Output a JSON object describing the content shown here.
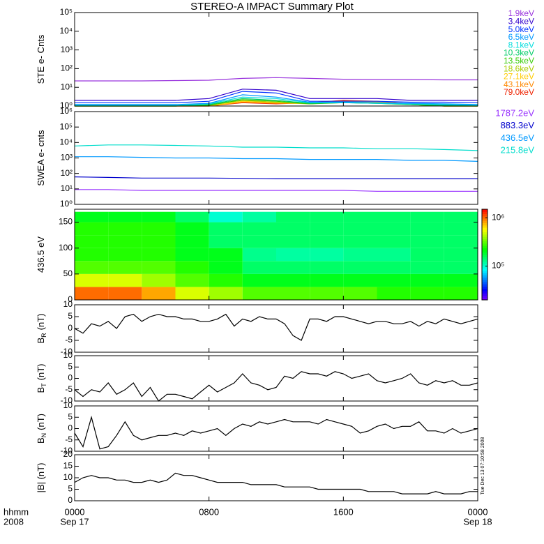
{
  "title": "STEREO-A IMPACT Summary Plot",
  "timestamp": "Tue Dec 13 07:10:58 2008",
  "chart_data": [
    {
      "type": "line",
      "ylabel": "STE e- Cnts",
      "ylog": true,
      "ylim": [
        1,
        100000
      ],
      "yticks": [
        {
          "value": 1,
          "label": "10⁰"
        },
        {
          "value": 10,
          "label": "10¹"
        },
        {
          "value": 100,
          "label": "10²"
        },
        {
          "value": 1000,
          "label": "10³"
        },
        {
          "value": 10000,
          "label": "10⁴"
        },
        {
          "value": 100000,
          "label": "10⁵"
        }
      ],
      "xlim": [
        0,
        24
      ],
      "xticks": [
        0,
        8,
        16,
        24
      ],
      "x": [
        0,
        2,
        4,
        6,
        8,
        10,
        12,
        14,
        16,
        18,
        20,
        22,
        24
      ],
      "series": [
        {
          "name": "1.9keV",
          "color": "#9933dd",
          "values": [
            22,
            22,
            22,
            23,
            24,
            30,
            33,
            30,
            27,
            26,
            26,
            25,
            25
          ]
        },
        {
          "name": "3.4keV",
          "color": "#3300cc",
          "values": [
            2,
            2,
            2,
            2,
            2.5,
            8,
            7,
            2.5,
            2.5,
            2.5,
            2,
            2,
            2
          ]
        },
        {
          "name": "5.0keV",
          "color": "#0033ff",
          "values": [
            1.5,
            1.5,
            1.5,
            1.5,
            1.8,
            6,
            5,
            1.8,
            1.8,
            1.8,
            1.6,
            1.6,
            1.5
          ]
        },
        {
          "name": "6.5keV",
          "color": "#0099ff",
          "values": [
            1.2,
            1.2,
            1.2,
            1.2,
            1.4,
            4,
            3,
            1.6,
            1.6,
            1.5,
            1.4,
            1.3,
            1.2
          ]
        },
        {
          "name": "8.1keV",
          "color": "#00dddd",
          "values": [
            1.1,
            1.1,
            1.1,
            1.1,
            1.3,
            3,
            2.5,
            1.5,
            1.5,
            1.4,
            1.3,
            1.2,
            1.1
          ]
        },
        {
          "name": "10.3keV",
          "color": "#00cc66",
          "values": [
            1,
            1,
            1,
            1,
            1.2,
            2.5,
            2,
            1.4,
            1.5,
            1.4,
            1.2,
            1.1,
            1
          ]
        },
        {
          "name": "13.5keV",
          "color": "#33cc00",
          "values": [
            1,
            1,
            1,
            1,
            1.1,
            2.2,
            1.8,
            1.3,
            1.5,
            1.4,
            1.2,
            1,
            1
          ]
        },
        {
          "name": "18.6keV",
          "color": "#aacc00",
          "values": [
            1,
            1,
            1,
            1,
            1.1,
            2,
            1.6,
            1.3,
            1.6,
            1.5,
            1.2,
            1,
            1
          ]
        },
        {
          "name": "27.1keV",
          "color": "#ffcc00",
          "values": [
            1,
            1,
            1,
            1,
            1,
            1.8,
            1.5,
            1.3,
            1.7,
            1.6,
            1.2,
            1,
            1
          ]
        },
        {
          "name": "43.1keV",
          "color": "#ff8800",
          "values": [
            1,
            1,
            1,
            1,
            1,
            1.6,
            1.4,
            1.4,
            1.8,
            1.7,
            1.3,
            1,
            1
          ]
        },
        {
          "name": "79.0keV",
          "color": "#ee2200",
          "values": [
            1,
            1,
            1,
            1,
            1,
            1.5,
            1.3,
            1.5,
            2,
            1.8,
            1.3,
            1,
            1
          ]
        }
      ]
    },
    {
      "type": "line",
      "ylabel": "SWEA e- cnts",
      "ylog": true,
      "ylim": [
        1,
        1000000
      ],
      "yticks": [
        {
          "value": 1,
          "label": "10⁰"
        },
        {
          "value": 10,
          "label": "10¹"
        },
        {
          "value": 100,
          "label": "10²"
        },
        {
          "value": 1000,
          "label": "10³"
        },
        {
          "value": 10000,
          "label": "10⁴"
        },
        {
          "value": 100000,
          "label": "10⁵"
        },
        {
          "value": 1000000,
          "label": "10⁶"
        }
      ],
      "xlim": [
        0,
        24
      ],
      "xticks": [
        0,
        8,
        16,
        24
      ],
      "x": [
        0,
        2,
        4,
        6,
        8,
        10,
        12,
        14,
        16,
        18,
        20,
        22,
        24
      ],
      "series": [
        {
          "name": "1787.2eV",
          "color": "#9933ff",
          "values": [
            9,
            9,
            8,
            8,
            8,
            8,
            8,
            8,
            8,
            7,
            7,
            7,
            7
          ]
        },
        {
          "name": "883.3eV",
          "color": "#0000cc",
          "values": [
            60,
            55,
            50,
            50,
            50,
            48,
            45,
            45,
            45,
            45,
            45,
            45,
            45
          ]
        },
        {
          "name": "436.5eV",
          "color": "#0099ff",
          "values": [
            1200,
            1200,
            1100,
            1000,
            1000,
            900,
            900,
            800,
            800,
            800,
            700,
            700,
            600
          ]
        },
        {
          "name": "215.8eV",
          "color": "#00ddcc",
          "values": [
            6000,
            7000,
            7000,
            6500,
            6000,
            5000,
            5000,
            4500,
            4500,
            4000,
            4000,
            3500,
            3000
          ]
        }
      ]
    },
    {
      "type": "heatmap",
      "ylabel": "436.5 eV",
      "ylim": [
        0,
        175
      ],
      "yticks": [
        0,
        50,
        100,
        150
      ],
      "xlim": [
        0,
        24
      ],
      "xticks": [
        0,
        8,
        16,
        24
      ],
      "x_edges": [
        0,
        2,
        4,
        6,
        8,
        10,
        12,
        14,
        16,
        18,
        20,
        22,
        24
      ],
      "y_edges": [
        0,
        25,
        50,
        75,
        100,
        125,
        150,
        170
      ],
      "zlog": true,
      "zlim": [
        20000,
        1500000
      ],
      "colormap": "rainbow",
      "zticks": [
        {
          "value": 100000,
          "label": "10⁵"
        },
        {
          "value": 1000000,
          "label": "10⁶"
        }
      ],
      "values": [
        [
          1000000,
          1000000,
          800000,
          500000,
          400000,
          300000,
          300000,
          300000,
          300000,
          250000,
          250000,
          250000
        ],
        [
          500000,
          500000,
          400000,
          300000,
          250000,
          200000,
          200000,
          200000,
          200000,
          200000,
          200000,
          200000
        ],
        [
          300000,
          300000,
          300000,
          250000,
          200000,
          150000,
          150000,
          150000,
          150000,
          150000,
          150000,
          150000
        ],
        [
          250000,
          250000,
          250000,
          200000,
          200000,
          130000,
          120000,
          120000,
          130000,
          130000,
          150000,
          150000
        ],
        [
          250000,
          250000,
          250000,
          200000,
          150000,
          150000,
          150000,
          150000,
          150000,
          150000,
          150000,
          150000
        ],
        [
          250000,
          250000,
          250000,
          200000,
          150000,
          150000,
          150000,
          150000,
          150000,
          150000,
          150000,
          150000
        ],
        [
          200000,
          200000,
          200000,
          150000,
          100000,
          120000,
          150000,
          150000,
          150000,
          150000,
          150000,
          150000
        ]
      ]
    },
    {
      "type": "line",
      "ylabel": "B",
      "ylabel_sub": "R",
      "ylabel_unit": "(nT)",
      "ylim": [
        -10,
        10
      ],
      "yticks": [
        -10,
        -5,
        0,
        5,
        10
      ],
      "xlim": [
        0,
        24
      ],
      "xticks": [
        0,
        8,
        16,
        24
      ],
      "x": [
        0,
        0.5,
        1,
        1.5,
        2,
        2.5,
        3,
        3.5,
        4,
        4.5,
        5,
        5.5,
        6,
        6.5,
        7,
        7.5,
        8,
        8.5,
        9,
        9.5,
        10,
        10.5,
        11,
        11.5,
        12,
        12.5,
        13,
        13.5,
        14,
        14.5,
        15,
        15.5,
        16,
        16.5,
        17,
        17.5,
        18,
        18.5,
        19,
        19.5,
        20,
        20.5,
        21,
        21.5,
        22,
        22.5,
        23,
        23.5,
        24
      ],
      "series": [
        {
          "color": "#000000",
          "values": [
            0,
            -2,
            2,
            1,
            3,
            0,
            5,
            6,
            3,
            5,
            6,
            5,
            5,
            4,
            4,
            3,
            3,
            4,
            6,
            1,
            4,
            3,
            5,
            4,
            4,
            2,
            -3,
            -5,
            4,
            4,
            3,
            5,
            5,
            4,
            3,
            2,
            3,
            3,
            2,
            2,
            3,
            1,
            3,
            2,
            4,
            3,
            2,
            3,
            4
          ]
        }
      ]
    },
    {
      "type": "line",
      "ylabel": "B",
      "ylabel_sub": "T",
      "ylabel_unit": "(nT)",
      "ylim": [
        -10,
        10
      ],
      "yticks": [
        -10,
        -5,
        0,
        5,
        10
      ],
      "xlim": [
        0,
        24
      ],
      "xticks": [
        0,
        8,
        16,
        24
      ],
      "x": [
        0,
        0.5,
        1,
        1.5,
        2,
        2.5,
        3,
        3.5,
        4,
        4.5,
        5,
        5.5,
        6,
        6.5,
        7,
        7.5,
        8,
        8.5,
        9,
        9.5,
        10,
        10.5,
        11,
        11.5,
        12,
        12.5,
        13,
        13.5,
        14,
        14.5,
        15,
        15.5,
        16,
        16.5,
        17,
        17.5,
        18,
        18.5,
        19,
        19.5,
        20,
        20.5,
        21,
        21.5,
        22,
        22.5,
        23,
        23.5,
        24
      ],
      "series": [
        {
          "color": "#000000",
          "values": [
            -5,
            -8,
            -5,
            -6,
            -2,
            -7,
            -5,
            -2,
            -8,
            -4,
            -10,
            -7,
            -7,
            -8,
            -9,
            -6,
            -3,
            -6,
            -4,
            -2,
            2,
            -2,
            -3,
            -5,
            -4,
            1,
            0,
            3,
            2,
            2,
            1,
            3,
            2,
            0,
            1,
            2,
            -1,
            -2,
            -1,
            0,
            2,
            -2,
            -3,
            -1,
            -2,
            -1,
            -3,
            -3,
            -2
          ]
        }
      ]
    },
    {
      "type": "line",
      "ylabel": "B",
      "ylabel_sub": "N",
      "ylabel_unit": "(nT)",
      "ylim": [
        -10,
        10
      ],
      "yticks": [
        -10,
        -5,
        0,
        5,
        10
      ],
      "xlim": [
        0,
        24
      ],
      "xticks": [
        0,
        8,
        16,
        24
      ],
      "x": [
        0,
        0.5,
        1,
        1.5,
        2,
        2.5,
        3,
        3.5,
        4,
        4.5,
        5,
        5.5,
        6,
        6.5,
        7,
        7.5,
        8,
        8.5,
        9,
        9.5,
        10,
        10.5,
        11,
        11.5,
        12,
        12.5,
        13,
        13.5,
        14,
        14.5,
        15,
        15.5,
        16,
        16.5,
        17,
        17.5,
        18,
        18.5,
        19,
        19.5,
        20,
        20.5,
        21,
        21.5,
        22,
        22.5,
        23,
        23.5,
        24
      ],
      "series": [
        {
          "color": "#000000",
          "values": [
            -2,
            -8,
            5,
            -9,
            -8,
            -3,
            3,
            -3,
            -5,
            -4,
            -3,
            -3,
            -2,
            -3,
            -1,
            -2,
            -1,
            0,
            -3,
            0,
            2,
            1,
            3,
            2,
            3,
            4,
            3,
            3,
            3,
            2,
            4,
            3,
            2,
            1,
            -2,
            -1,
            1,
            2,
            0,
            1,
            1,
            3,
            -1,
            -1,
            -2,
            0,
            -2,
            -1,
            0
          ]
        }
      ]
    },
    {
      "type": "line",
      "ylabel": "|B| (nT)",
      "ylim": [
        0,
        20
      ],
      "yticks": [
        0,
        5,
        10,
        15,
        20
      ],
      "xlim": [
        0,
        24
      ],
      "xticks": [
        {
          "value": 0,
          "label": "0000"
        },
        {
          "value": 8,
          "label": "0800"
        },
        {
          "value": 16,
          "label": "1600"
        },
        {
          "value": 24,
          "label": "0000"
        }
      ],
      "x_unit_label": "hhmm",
      "year": "2008",
      "start_date": "Sep 17",
      "end_date": "Sep 18",
      "x": [
        0,
        0.5,
        1,
        1.5,
        2,
        2.5,
        3,
        3.5,
        4,
        4.5,
        5,
        5.5,
        6,
        6.5,
        7,
        7.5,
        8,
        8.5,
        9,
        9.5,
        10,
        10.5,
        11,
        11.5,
        12,
        12.5,
        13,
        13.5,
        14,
        14.5,
        15,
        15.5,
        16,
        16.5,
        17,
        17.5,
        18,
        18.5,
        19,
        19.5,
        20,
        20.5,
        21,
        21.5,
        22,
        22.5,
        23,
        23.5,
        24
      ],
      "series": [
        {
          "color": "#000000",
          "values": [
            8,
            10,
            11,
            10,
            10,
            9,
            9,
            8,
            8,
            9,
            8,
            9,
            12,
            11,
            11,
            10,
            9,
            8,
            8,
            8,
            8,
            7,
            7,
            7,
            7,
            6,
            6,
            6,
            6,
            5,
            5,
            5,
            5,
            5,
            5,
            4,
            4,
            4,
            4,
            3,
            3,
            3,
            3,
            4,
            3,
            3,
            3,
            4,
            4
          ]
        }
      ]
    }
  ]
}
